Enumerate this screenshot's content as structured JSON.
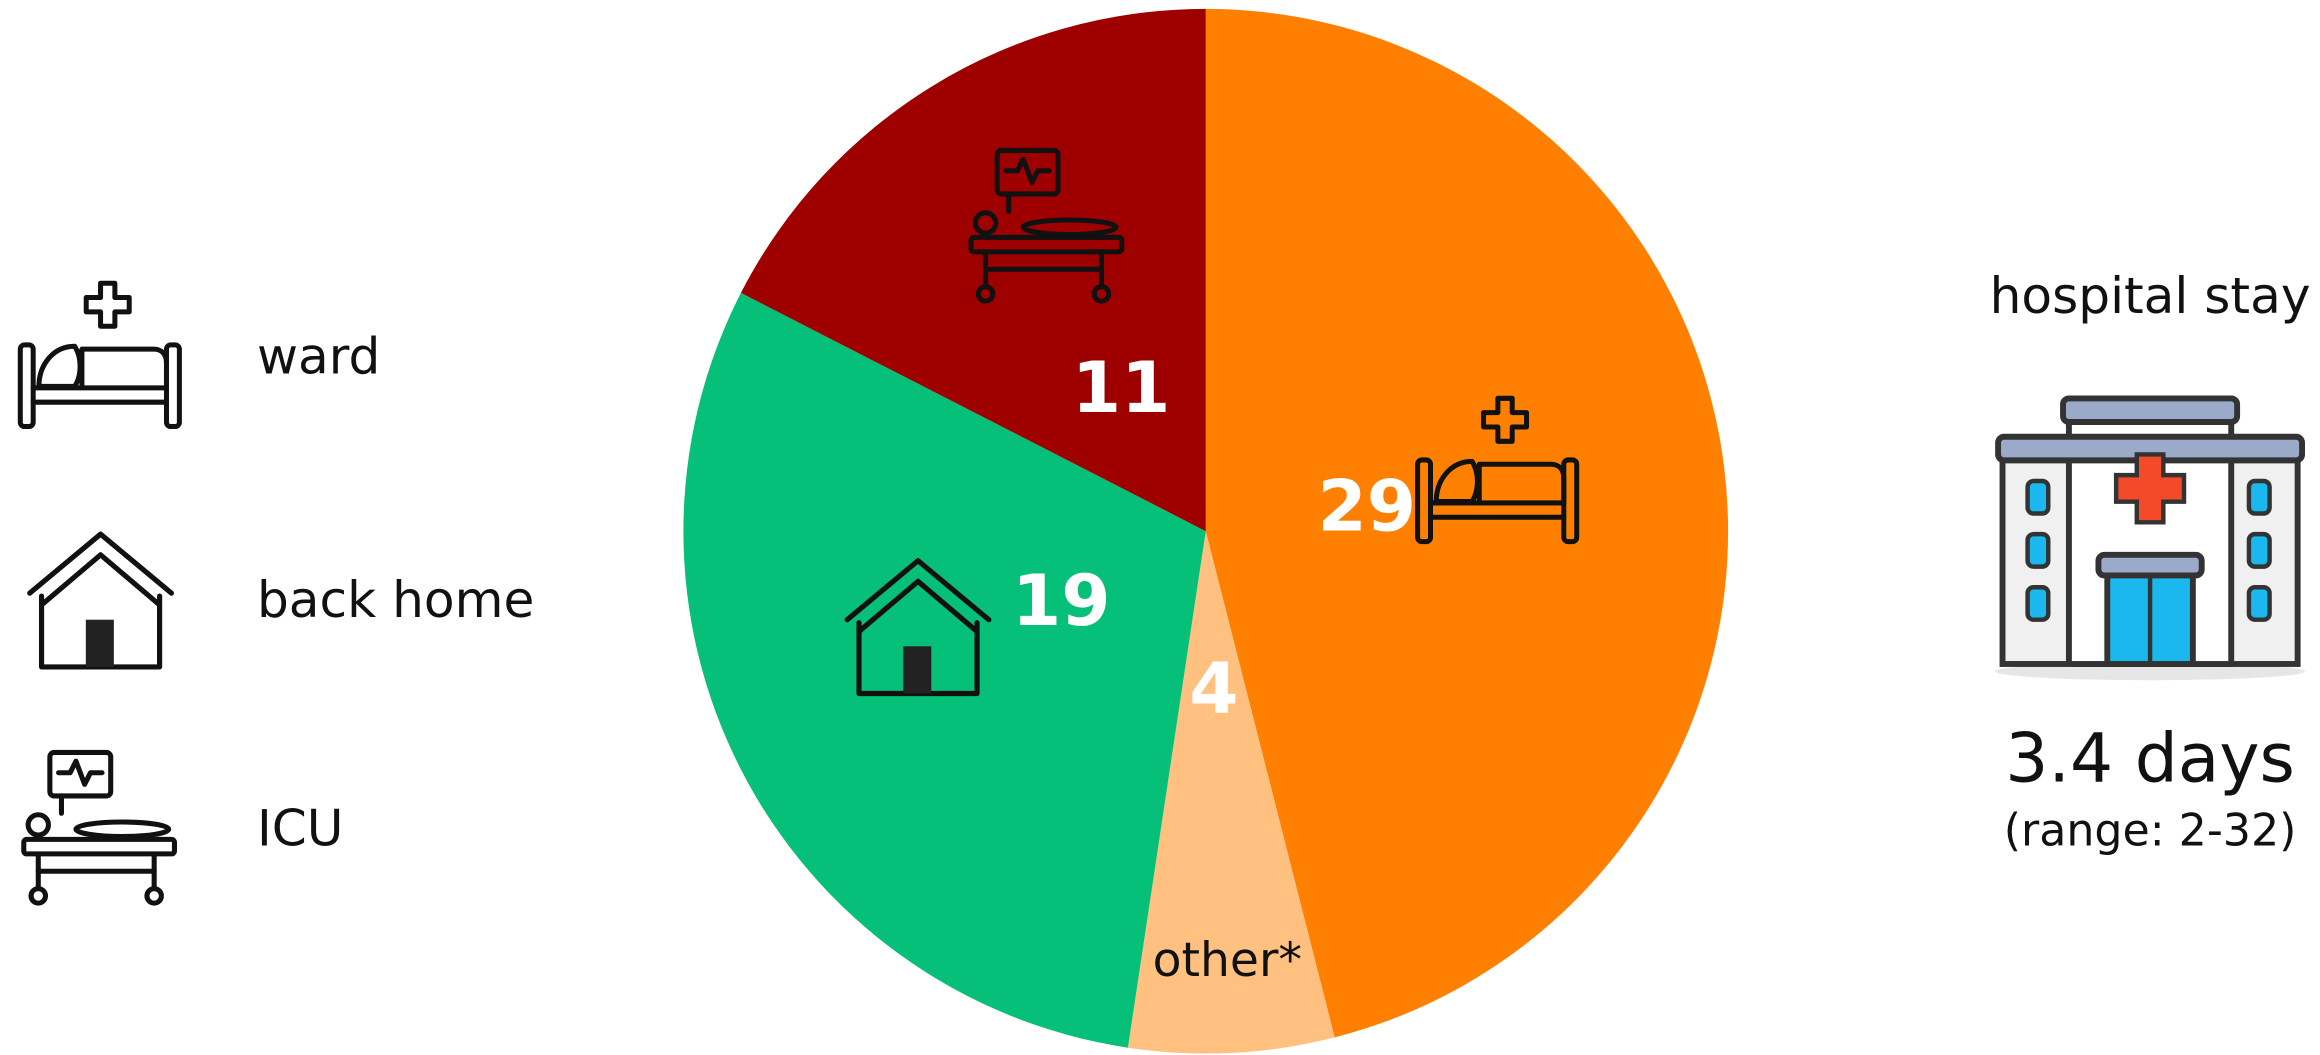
{
  "chart_data": {
    "type": "pie",
    "categories": [
      "ward",
      "other*",
      "back home",
      "ICU"
    ],
    "values": [
      29,
      4,
      19,
      11
    ],
    "colors": [
      "#ff8000",
      "#ffc080",
      "#06bf78",
      "#9e0000"
    ],
    "legend": "left"
  },
  "side_panel": {
    "title": "hospital stay",
    "value": "3.4 days",
    "range": "(range: 2-32)"
  }
}
